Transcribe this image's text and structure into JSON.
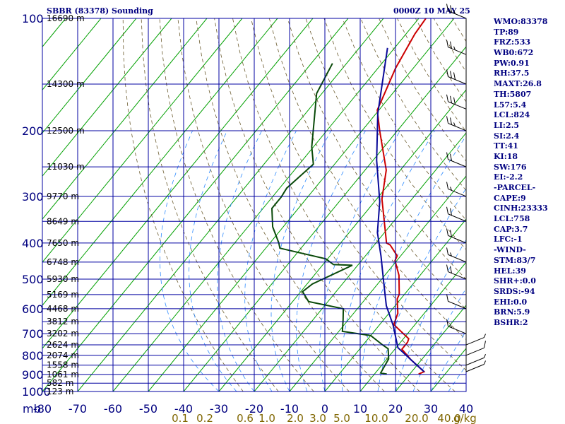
{
  "header": {
    "station": "SBBR (83378) Sounding",
    "datetime": "0000Z 10 MAY 25"
  },
  "indices": [
    "WMO:83378",
    "TP:89",
    "FRZ:533",
    "WB0:672",
    "PW:0.91",
    "RH:37.5",
    "MAXT:26.8",
    "TH:5807",
    "L57:5.4",
    "LCL:824",
    "LI:2.5",
    "SI:2.4",
    "TT:41",
    "KI:18",
    "SW:176",
    "EI:-2.2",
    "-PARCEL-",
    "CAPE:9",
    "CINH:23333",
    "LCL:758",
    "CAP:3.7",
    "LFC:-1",
    "-WIND-",
    "STM:83/7",
    "HEL:39",
    "SHR+:0.0",
    "SRDS:-94",
    "EHI:0.0",
    "BRN:5.9",
    "BSHR:2"
  ],
  "chart_data": {
    "type": "line",
    "title": "SBBR (83378) Sounding",
    "xlabel": "",
    "ylabel": "",
    "unit_label": "mb",
    "mixing_ratio_unit": "g/kg",
    "xlim": [
      -80,
      40
    ],
    "ylim": [
      1000,
      100
    ],
    "y_scale": "log",
    "grid": true,
    "pressure_ticks": [
      100,
      200,
      300,
      400,
      500,
      600,
      700,
      800,
      900,
      1000
    ],
    "temperature_ticks": [
      -80,
      -70,
      -60,
      -50,
      -40,
      -30,
      -20,
      -10,
      0,
      10,
      20,
      30,
      40
    ],
    "temperature_tick_labels": [
      "-80",
      "-70",
      "-60",
      "-50",
      "-40",
      "-30",
      "-20",
      "-10",
      "0",
      "10",
      "20",
      "30",
      "40"
    ],
    "mixing_ratio_labels": [
      "0.1",
      "0.2",
      "0.6",
      "1.0",
      "2.0",
      "3.0",
      "5.0",
      "10.0",
      "20.0",
      "40.0"
    ],
    "height_labels": [
      {
        "p": 100,
        "label": "16690 m"
      },
      {
        "p": 150,
        "label": "14300 m"
      },
      {
        "p": 200,
        "label": "12500 m"
      },
      {
        "p": 250,
        "label": "11030 m"
      },
      {
        "p": 300,
        "label": "9770 m"
      },
      {
        "p": 350,
        "label": "8649 m"
      },
      {
        "p": 400,
        "label": "7650 m"
      },
      {
        "p": 450,
        "label": "6748 m"
      },
      {
        "p": 500,
        "label": "5930 m"
      },
      {
        "p": 550,
        "label": "5169 m"
      },
      {
        "p": 600,
        "label": "4468 m"
      },
      {
        "p": 650,
        "label": "3812 m"
      },
      {
        "p": 700,
        "label": "3202 m"
      },
      {
        "p": 750,
        "label": "2624 m"
      },
      {
        "p": 800,
        "label": "2074 m"
      },
      {
        "p": 850,
        "label": "1558 m"
      },
      {
        "p": 900,
        "label": "1061 m"
      },
      {
        "p": 950,
        "label": "582 m"
      },
      {
        "p": 1000,
        "label": "123 m"
      }
    ],
    "series": [
      {
        "color": "#cc0000",
        "points": [
          [
            22.5,
            898
          ],
          [
            23.5,
            885
          ],
          [
            17,
            822
          ],
          [
            12,
            770
          ],
          [
            12,
            738
          ],
          [
            11.5,
            722
          ],
          [
            4,
            662
          ],
          [
            2.5,
            617
          ],
          [
            -1,
            565
          ],
          [
            -1.5,
            549
          ],
          [
            -6,
            488
          ],
          [
            -10.5,
            446
          ],
          [
            -11,
            433
          ],
          [
            -15.5,
            405
          ],
          [
            -17,
            400
          ],
          [
            -28.5,
            305
          ],
          [
            -34,
            255
          ],
          [
            -45,
            200
          ],
          [
            -50.5,
            176
          ],
          [
            -51.5,
            166
          ],
          [
            -55,
            136
          ],
          [
            -57.5,
            110
          ],
          [
            -58,
            100
          ]
        ]
      },
      {
        "color": "#0a0a99",
        "points": [
          [
            23.5,
            885
          ],
          [
            17,
            822
          ],
          [
            10.5,
            763
          ],
          [
            4,
            665
          ],
          [
            -2.5,
            589
          ],
          [
            -9,
            506
          ],
          [
            -15.5,
            434
          ],
          [
            -22,
            375
          ],
          [
            -28.5,
            310
          ],
          [
            -39,
            240
          ],
          [
            -49.5,
            180
          ],
          [
            -62,
            120
          ]
        ]
      },
      {
        "color": "#0a4a0a",
        "points": [
          [
            13.5,
            898
          ],
          [
            11.5,
            892
          ],
          [
            10.5,
            818
          ],
          [
            8,
            768
          ],
          [
            5.5,
            750
          ],
          [
            0,
            708
          ],
          [
            -9,
            690
          ],
          [
            -11.5,
            642
          ],
          [
            -14,
            600
          ],
          [
            -25.5,
            574
          ],
          [
            -29.5,
            540
          ],
          [
            -28.5,
            515
          ],
          [
            -21.5,
            459
          ],
          [
            -27,
            457
          ],
          [
            -30.5,
            441
          ],
          [
            -46,
            413
          ],
          [
            -47.5,
            400
          ],
          [
            -53,
            362
          ],
          [
            -57.5,
            323
          ],
          [
            -57.5,
            301
          ],
          [
            -58,
            285
          ],
          [
            -56,
            246
          ],
          [
            -60.5,
            221
          ],
          [
            -64,
            199
          ],
          [
            -71.5,
            159
          ],
          [
            -74,
            132
          ]
        ]
      }
    ],
    "wind_barbs": [
      {
        "p": 885,
        "dir": 90,
        "spd": 5
      },
      {
        "p": 850,
        "dir": 90,
        "spd": 5
      },
      {
        "p": 800,
        "dir": 90,
        "spd": 10
      },
      {
        "p": 750,
        "dir": 90,
        "spd": 5
      },
      {
        "p": 700,
        "dir": 270,
        "spd": 15
      },
      {
        "p": 600,
        "dir": 270,
        "spd": 10
      },
      {
        "p": 500,
        "dir": 270,
        "spd": 20
      },
      {
        "p": 450,
        "dir": 270,
        "spd": 15
      },
      {
        "p": 400,
        "dir": 270,
        "spd": 20
      },
      {
        "p": 350,
        "dir": 270,
        "spd": 20
      },
      {
        "p": 300,
        "dir": 270,
        "spd": 15
      },
      {
        "p": 250,
        "dir": 270,
        "spd": 20
      },
      {
        "p": 200,
        "dir": 270,
        "spd": 25
      },
      {
        "p": 175,
        "dir": 270,
        "spd": 30
      },
      {
        "p": 150,
        "dir": 270,
        "spd": 30
      },
      {
        "p": 125,
        "dir": 270,
        "spd": 25
      },
      {
        "p": 100,
        "dir": 270,
        "spd": 25
      }
    ],
    "colors": {
      "grid": "#0000a0",
      "isotherm_skewed": "#00a000",
      "dry_adiabat": "#6b5b2e",
      "moist_adiabat": "#2e8bff",
      "axis_label": "#000080",
      "mixing_ratio_label": "#806600"
    }
  }
}
